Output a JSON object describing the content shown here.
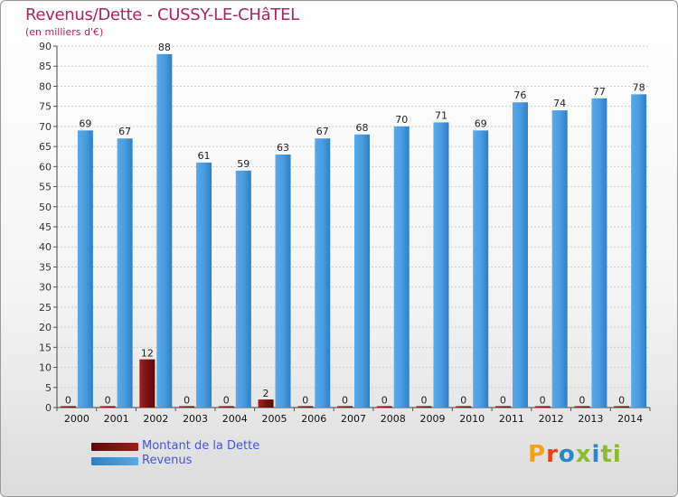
{
  "title": "Revenus/Dette - CUSSY-LE-CHâTEL",
  "subtitle": "(en milliers d'€)",
  "colors": {
    "revenus": "#3d8fd4",
    "dette": "#7a1111",
    "title": "#a8255f",
    "legend_text": "#4455dd"
  },
  "logo": {
    "l1": "P",
    "l2": "r",
    "l3": "o",
    "l4": "x",
    "l5": "i",
    "l6": "ti"
  },
  "chart_data": {
    "type": "bar",
    "title": "Revenus/Dette - CUSSY-LE-CHâTEL",
    "ylabel": "(en milliers d'€)",
    "xlabel": "",
    "ylim": [
      0,
      90
    ],
    "yticks": [
      0,
      5,
      10,
      15,
      20,
      25,
      30,
      35,
      40,
      45,
      50,
      55,
      60,
      65,
      70,
      75,
      80,
      85,
      90
    ],
    "grid": true,
    "legend_position": "bottom-left",
    "categories": [
      "2000",
      "2001",
      "2002",
      "2003",
      "2004",
      "2005",
      "2006",
      "2007",
      "2008",
      "2009",
      "2010",
      "2011",
      "2012",
      "2013",
      "2014"
    ],
    "series": [
      {
        "name": "Montant de la Dette",
        "values": [
          0,
          0,
          12,
          0,
          0,
          2,
          0,
          0,
          0,
          0,
          0,
          0,
          0,
          0,
          0
        ]
      },
      {
        "name": "Revenus",
        "values": [
          69,
          67,
          88,
          61,
          59,
          63,
          67,
          68,
          70,
          71,
          69,
          76,
          74,
          77,
          78
        ]
      }
    ]
  }
}
